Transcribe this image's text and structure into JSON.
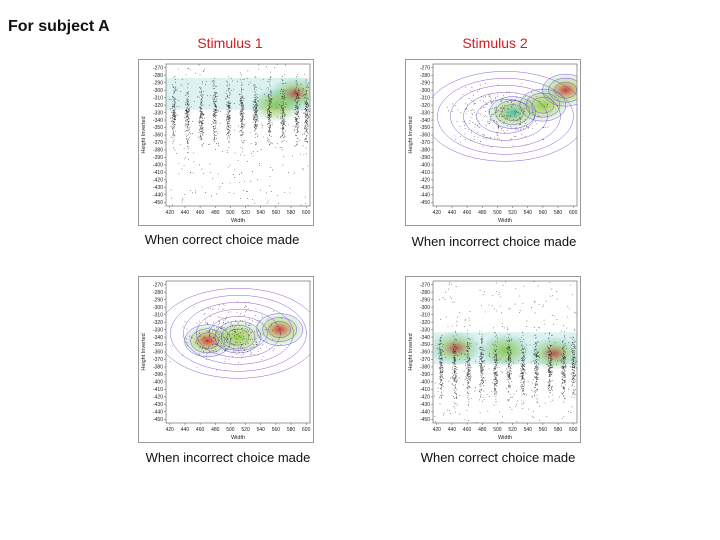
{
  "page_title": "For subject A",
  "column_headers": [
    "Stimulus 1",
    "Stimulus 2"
  ],
  "colors": {
    "header_red": "#cc2020",
    "contour": "#7a3fd0",
    "point": "#111111",
    "density_low": "#3fb6b0",
    "density_mid": "#8ec63f",
    "density_high": "#d42020"
  },
  "chart_data": [
    {
      "panel": "top-left",
      "type": "scatter",
      "style": "density-columns",
      "caption": "When correct choice made",
      "xlabel": "Width",
      "ylabel": "Height Inverted",
      "xlim": [
        415,
        605
      ],
      "ylim": [
        -455,
        -265
      ],
      "xticks": [
        420,
        440,
        460,
        480,
        500,
        520,
        540,
        560,
        580,
        600
      ],
      "yticks": [
        -270,
        -280,
        -290,
        -300,
        -310,
        -320,
        -330,
        -340,
        -350,
        -360,
        -370,
        -380,
        -390,
        -400,
        -410,
        -420,
        -430,
        -440,
        -450
      ],
      "hotspots": [
        {
          "x": 585,
          "y": -305,
          "level": "high"
        },
        {
          "x": 560,
          "y": -320,
          "level": "mid"
        }
      ]
    },
    {
      "panel": "top-right",
      "type": "scatter",
      "style": "sparse-contours",
      "caption": "When incorrect choice made",
      "xlabel": "Width",
      "ylabel": "Height Inverted",
      "xlim": [
        415,
        605
      ],
      "ylim": [
        -455,
        -265
      ],
      "xticks": [
        420,
        440,
        460,
        480,
        500,
        520,
        540,
        560,
        580,
        600
      ],
      "yticks": [
        -270,
        -280,
        -290,
        -300,
        -310,
        -320,
        -330,
        -340,
        -350,
        -360,
        -370,
        -380,
        -390,
        -400,
        -410,
        -420,
        -430,
        -440,
        -450
      ],
      "hotspots": [
        {
          "x": 590,
          "y": -300,
          "level": "high"
        },
        {
          "x": 560,
          "y": -320,
          "level": "mid"
        },
        {
          "x": 520,
          "y": -330,
          "level": "low"
        }
      ]
    },
    {
      "panel": "bottom-left",
      "type": "scatter",
      "style": "sparse-contours",
      "caption": "When incorrect choice made",
      "xlabel": "Width",
      "ylabel": "Height Inverted",
      "xlim": [
        415,
        605
      ],
      "ylim": [
        -455,
        -265
      ],
      "xticks": [
        420,
        440,
        460,
        480,
        500,
        520,
        540,
        560,
        580,
        600
      ],
      "yticks": [
        -270,
        -280,
        -290,
        -300,
        -310,
        -320,
        -330,
        -340,
        -350,
        -360,
        -370,
        -380,
        -390,
        -400,
        -410,
        -420,
        -430,
        -440,
        -450
      ],
      "hotspots": [
        {
          "x": 470,
          "y": -345,
          "level": "high"
        },
        {
          "x": 565,
          "y": -330,
          "level": "high"
        },
        {
          "x": 510,
          "y": -340,
          "level": "mid"
        }
      ]
    },
    {
      "panel": "bottom-right",
      "type": "scatter",
      "style": "density-columns",
      "caption": "When correct choice made",
      "xlabel": "Width",
      "ylabel": "Height Inverted",
      "xlim": [
        415,
        605
      ],
      "ylim": [
        -455,
        -265
      ],
      "xticks": [
        420,
        440,
        460,
        480,
        500,
        520,
        540,
        560,
        580,
        600
      ],
      "yticks": [
        -270,
        -280,
        -290,
        -300,
        -310,
        -320,
        -330,
        -340,
        -350,
        -360,
        -370,
        -380,
        -390,
        -400,
        -410,
        -420,
        -430,
        -440,
        -450
      ],
      "hotspots": [
        {
          "x": 445,
          "y": -355,
          "level": "high"
        },
        {
          "x": 575,
          "y": -362,
          "level": "high"
        },
        {
          "x": 510,
          "y": -358,
          "level": "mid"
        }
      ]
    }
  ]
}
